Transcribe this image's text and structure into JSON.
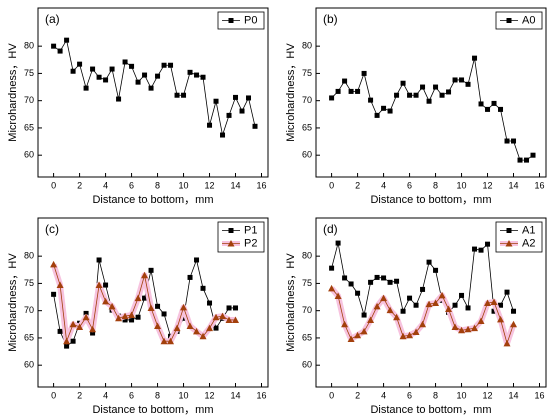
{
  "chart_data": [
    {
      "type": "line",
      "title": "(a)",
      "x_label": "Distance to bottom，mm",
      "y_label": "Microhardness，HV",
      "x": [
        0,
        0.5,
        1,
        1.5,
        2,
        2.5,
        3,
        3.5,
        4,
        4.5,
        5,
        5.5,
        6,
        6.5,
        7,
        7.5,
        8,
        8.5,
        9,
        9.5,
        10,
        10.5,
        11,
        11.5,
        12,
        12.5,
        13,
        13.5,
        14,
        14.5,
        15,
        15.5
      ],
      "series": [
        {
          "name": "P0",
          "color": "#000000",
          "marker": "square",
          "values": [
            80.0,
            79.1,
            81.1,
            75.4,
            76.7,
            72.3,
            75.8,
            74.3,
            73.8,
            75.8,
            70.3,
            77.1,
            76.3,
            73.4,
            74.7,
            72.3,
            74.5,
            76.5,
            76.5,
            71.0,
            71.0,
            75.2,
            74.7,
            74.3,
            65.5,
            69.9,
            63.7,
            67.3,
            70.6,
            68.1,
            70.5,
            65.3
          ]
        }
      ],
      "xlim": [
        -1.2,
        16.5
      ],
      "ylim": [
        56,
        87
      ],
      "xticks": [
        0,
        2,
        4,
        6,
        8,
        10,
        12,
        14,
        16
      ],
      "yticks": [
        60,
        65,
        70,
        75,
        80
      ],
      "legend": "upper right"
    },
    {
      "type": "line",
      "title": "(b)",
      "x_label": "Distance to bottom，mm",
      "y_label": "Microhardness，HV",
      "x": [
        0,
        0.5,
        1,
        1.5,
        2,
        2.5,
        3,
        3.5,
        4,
        4.5,
        5,
        5.5,
        6,
        6.5,
        7,
        7.5,
        8,
        8.5,
        9,
        9.5,
        10,
        10.5,
        11,
        11.5,
        12,
        12.5,
        13,
        13.5,
        14,
        14.5,
        15,
        15.5
      ],
      "series": [
        {
          "name": "A0",
          "color": "#000000",
          "marker": "square",
          "values": [
            70.5,
            71.7,
            73.6,
            71.7,
            71.7,
            75.0,
            70.1,
            67.3,
            68.6,
            68.1,
            71.0,
            73.2,
            71.0,
            71.0,
            72.5,
            69.9,
            72.5,
            71.0,
            71.6,
            73.8,
            73.8,
            73.0,
            77.8,
            69.4,
            68.4,
            69.5,
            68.4,
            62.6,
            62.6,
            59.1,
            59.1,
            60.0
          ]
        }
      ],
      "xlim": [
        -1.2,
        16.5
      ],
      "ylim": [
        56,
        87
      ],
      "xticks": [
        0,
        2,
        4,
        6,
        8,
        10,
        12,
        14,
        16
      ],
      "yticks": [
        60,
        65,
        70,
        75,
        80
      ],
      "legend": "upper right"
    },
    {
      "type": "line",
      "title": "(c)",
      "x_label": "Distance to bottom，mm",
      "y_label": "Microhardness，HV",
      "x": [
        0,
        0.5,
        1,
        1.5,
        2,
        2.5,
        3,
        3.5,
        4,
        4.5,
        5,
        5.5,
        6,
        6.5,
        7,
        7.5,
        8,
        8.5,
        9,
        9.5,
        10,
        10.5,
        11,
        11.5,
        12,
        12.5,
        13,
        13.5,
        14
      ],
      "series": [
        {
          "name": "P1",
          "color": "#000000",
          "marker": "square",
          "values": [
            73.0,
            66.2,
            63.5,
            64.4,
            67.7,
            69.5,
            65.9,
            79.3,
            74.7,
            70.1,
            69.0,
            68.3,
            68.3,
            68.8,
            72.3,
            77.4,
            70.8,
            69.4,
            65.3,
            66.2,
            68.6,
            76.1,
            79.3,
            74.1,
            71.4,
            66.8,
            68.6,
            70.5,
            70.5
          ]
        },
        {
          "name": "P2",
          "color": "#a3400c",
          "glow": "#f7c3df",
          "marker": "triangle",
          "values": [
            78.5,
            74.7,
            64.4,
            67.5,
            67.0,
            68.8,
            66.6,
            74.7,
            71.7,
            70.8,
            68.6,
            69.0,
            69.2,
            72.3,
            76.5,
            70.5,
            67.2,
            64.4,
            64.4,
            66.8,
            70.6,
            67.2,
            66.2,
            65.3,
            66.8,
            68.8,
            69.0,
            68.3,
            68.3
          ]
        }
      ],
      "xlim": [
        -1.2,
        16.5
      ],
      "ylim": [
        56,
        87
      ],
      "xticks": [
        0,
        2,
        4,
        6,
        8,
        10,
        12,
        14,
        16
      ],
      "yticks": [
        60,
        65,
        70,
        75,
        80
      ],
      "legend": "upper right"
    },
    {
      "type": "line",
      "title": "(d)",
      "x_label": "Distance to bottom，mm",
      "y_label": "Microhardness，HV",
      "x": [
        0,
        0.5,
        1,
        1.5,
        2,
        2.5,
        3,
        3.5,
        4,
        4.5,
        5,
        5.5,
        6,
        6.5,
        7,
        7.5,
        8,
        8.5,
        9,
        9.5,
        10,
        10.5,
        11,
        11.5,
        12,
        12.5,
        13,
        13.5,
        14
      ],
      "series": [
        {
          "name": "A1",
          "color": "#000000",
          "marker": "square",
          "values": [
            77.8,
            82.4,
            76.0,
            74.9,
            73.2,
            69.2,
            75.2,
            76.1,
            76.0,
            75.2,
            75.4,
            69.9,
            72.3,
            71.0,
            73.9,
            78.9,
            77.4,
            71.9,
            69.7,
            71.0,
            72.8,
            70.5,
            81.3,
            81.1,
            82.2,
            69.9,
            71.0,
            73.4,
            69.9
          ]
        },
        {
          "name": "A2",
          "color": "#a3400c",
          "glow": "#f7c3df",
          "marker": "triangle",
          "values": [
            74.1,
            72.7,
            67.5,
            64.8,
            65.5,
            66.2,
            68.3,
            70.8,
            72.3,
            70.1,
            68.8,
            65.3,
            65.5,
            66.1,
            67.5,
            71.2,
            71.4,
            72.8,
            70.3,
            67.0,
            66.4,
            66.6,
            66.8,
            68.1,
            71.4,
            71.6,
            68.4,
            64.0,
            67.5
          ]
        }
      ],
      "xlim": [
        -1.2,
        16.5
      ],
      "ylim": [
        56,
        87
      ],
      "xticks": [
        0,
        2,
        4,
        6,
        8,
        10,
        12,
        14,
        16
      ],
      "yticks": [
        60,
        65,
        70,
        75,
        80
      ],
      "legend": "upper right"
    }
  ]
}
